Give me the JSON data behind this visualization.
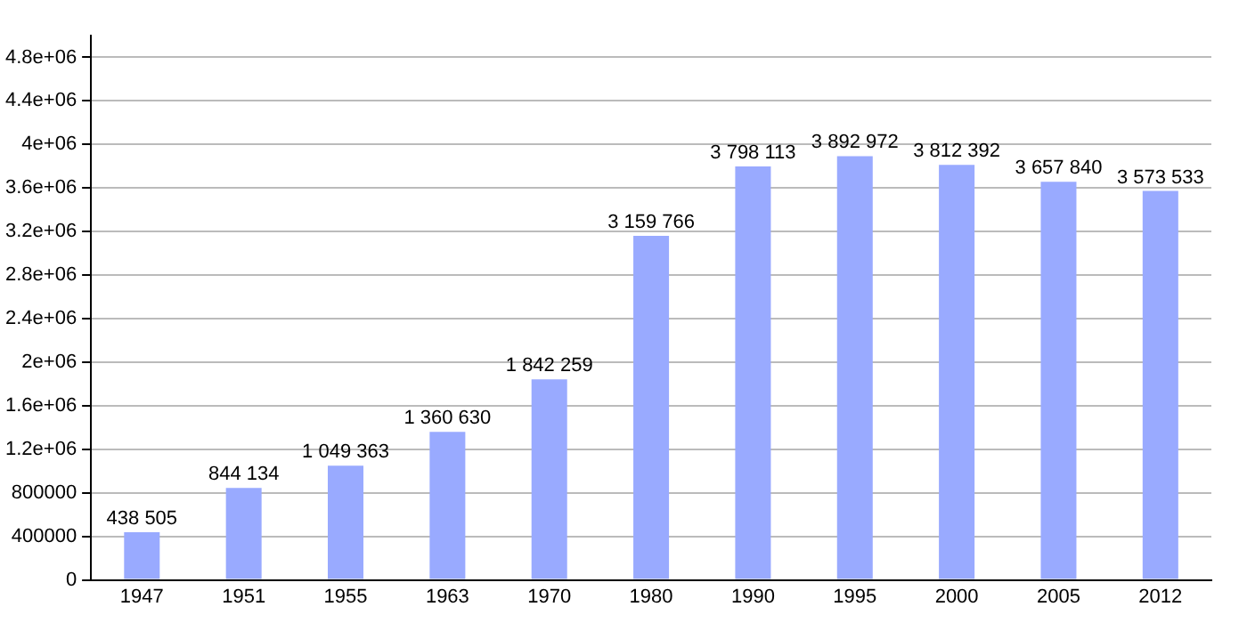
{
  "chart_data": {
    "type": "bar",
    "categories": [
      "1947",
      "1951",
      "1955",
      "1963",
      "1970",
      "1980",
      "1990",
      "1995",
      "2000",
      "2005",
      "2012"
    ],
    "values": [
      438505,
      844134,
      1049363,
      1360630,
      1842259,
      3159766,
      3798113,
      3892972,
      3812392,
      3657840,
      3573533
    ],
    "value_labels": [
      "438 505",
      "844 134",
      "1 049 363",
      "1 360 630",
      "1 842 259",
      "3 159 766",
      "3 798 113",
      "3 892 972",
      "3 812 392",
      "3 657 840",
      "3 573 533"
    ],
    "color": "#99aaff",
    "ylim": [
      0,
      5000000
    ],
    "yticks": [
      0,
      400000,
      800000,
      {
        "value": 1200000,
        "label": "1.2e+06"
      },
      {
        "value": 1600000,
        "label": "1.6e+06"
      },
      {
        "value": 2000000,
        "label": "2e+06"
      },
      {
        "value": 2400000,
        "label": "2.4e+06"
      },
      {
        "value": 2800000,
        "label": "2.8e+06"
      },
      {
        "value": 3200000,
        "label": "3.2e+06"
      },
      {
        "value": 3600000,
        "label": "3.6e+06"
      },
      {
        "value": 4000000,
        "label": "4e+06"
      },
      {
        "value": 4400000,
        "label": "4.4e+06"
      },
      {
        "value": 4800000,
        "label": "4.8e+06"
      }
    ],
    "grid": "y",
    "legend": false
  }
}
